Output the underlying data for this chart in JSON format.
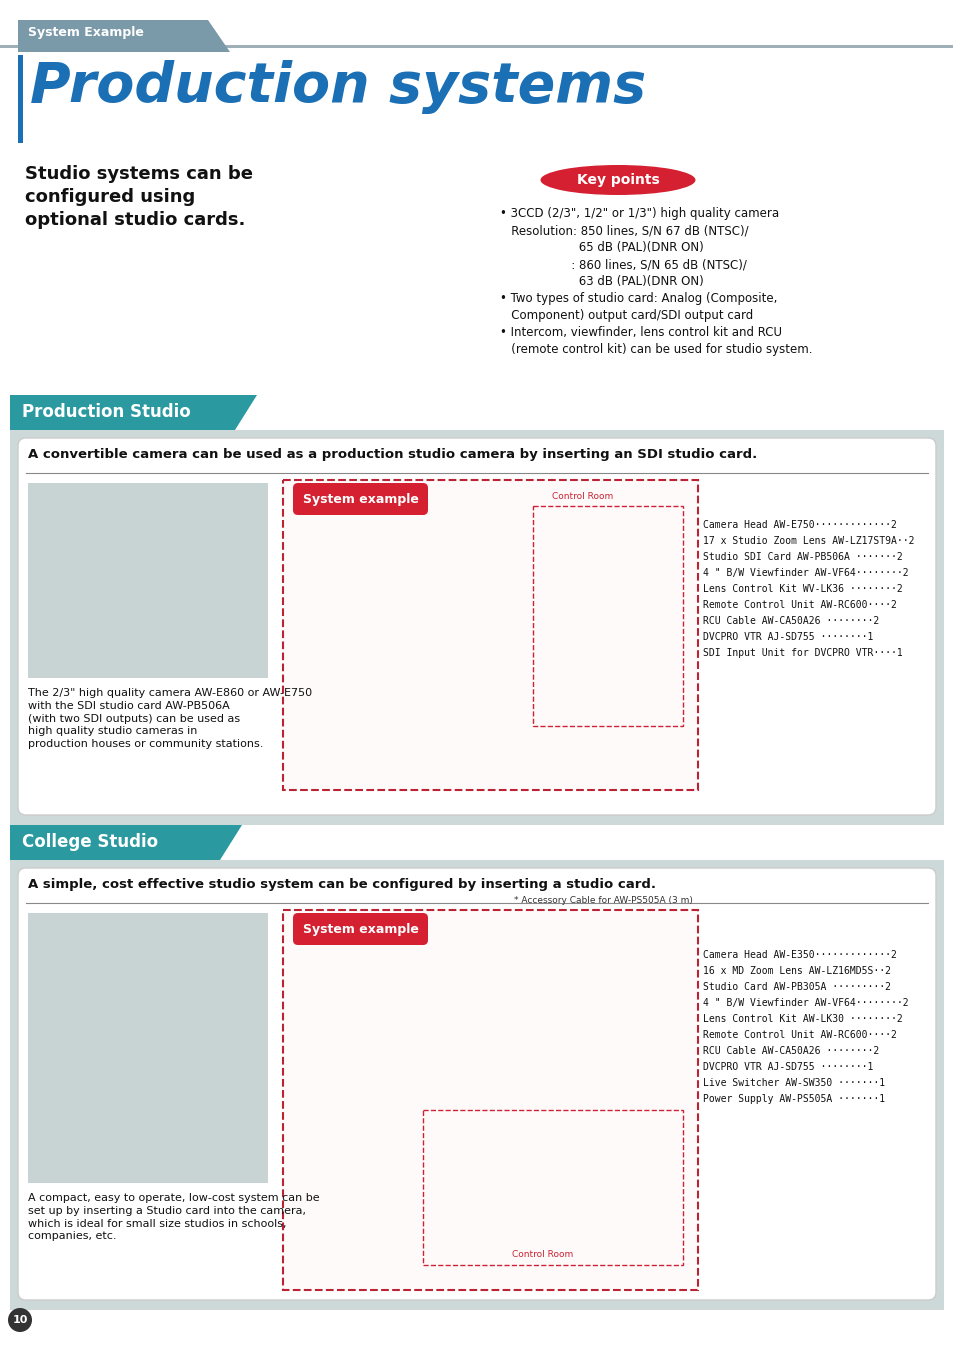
{
  "page_bg": "#ffffff",
  "outer_bg": "#cdd8d8",
  "header_bar_color": "#7a9aaa",
  "header_text": "System Example",
  "title_text": "Production systems",
  "title_color": "#1a6fb5",
  "subtitle_text": "Studio systems can be\nconfigured using\noptional studio cards.",
  "keypoints_text": "Key points",
  "bullet_lines": [
    "• 3CCD (2/3\", 1/2\" or 1/3\") high quality camera",
    "   Resolution: 850 lines, S/N 67 dB (NTSC)/",
    "                     65 dB (PAL)(DNR ON)",
    "                   : 860 lines, S/N 65 dB (NTSC)/",
    "                     63 dB (PAL)(DNR ON)",
    "• Two types of studio card: Analog (Composite,",
    "   Component) output card/SDI output card",
    "• Intercom, viewfinder, lens control kit and RCU",
    "   (remote control kit) can be used for studio system."
  ],
  "section1_header_text": "Production Studio",
  "section1_subtitle": "A convertible camera can be used as a production studio camera by inserting an SDI studio card.",
  "section1_body_text": "The 2/3\" high quality camera AW-E860 or AW-E750\nwith the SDI studio card AW-PB506A\n(with two SDI outputs) can be used as\nhigh quality studio cameras in\nproduction houses or community stations.",
  "section1_system_example_text": "System example",
  "section1_control_room": "Control Room",
  "section1_equip_list": [
    "Camera Head AW-E750·············2",
    "17 x Studio Zoom Lens AW-LZ17ST9A··2",
    "Studio SDI Card AW-PB506A ·······2",
    "4 \" B/W Viewfinder AW-VF64········2",
    "Lens Control Kit WV-LK36 ········2",
    "Remote Control Unit AW-RC600····2",
    "RCU Cable AW-CA50A26 ········2",
    "DVCPRO VTR AJ-SD755 ········1",
    "SDI Input Unit for DVCPRO VTR····1"
  ],
  "section2_header_text": "College Studio",
  "section2_subtitle": "A simple, cost effective studio system can be configured by inserting a studio card.",
  "section2_body_text": "A compact, easy to operate, low-cost system can be\nset up by inserting a Studio card into the camera,\nwhich is ideal for small size studios in schools,\ncompanies, etc.",
  "section2_system_example_text": "System example",
  "section2_accessory_note": "* Accessory Cable for AW-PS505A (3 m)",
  "section2_control_room": "Control Room",
  "section2_equip_list": [
    "Camera Head AW-E350·············2",
    "16 x MD Zoom Lens AW-LZ16MD5S··2",
    "Studio Card AW-PB305A ·········2",
    "4 \" B/W Viewfinder AW-VF64········2",
    "Lens Control Kit AW-LK30 ········2",
    "Remote Control Unit AW-RC600····2",
    "RCU Cable AW-CA50A26 ········2",
    "DVCPRO VTR AJ-SD755 ········1",
    "Live Switcher AW-SW350 ·······1",
    "Power Supply AW-PS505A ·······1"
  ],
  "page_number": "10",
  "teal_color": "#2a9aa0",
  "red_color": "#cc2233",
  "dark_red_ellipse": "#d42030"
}
